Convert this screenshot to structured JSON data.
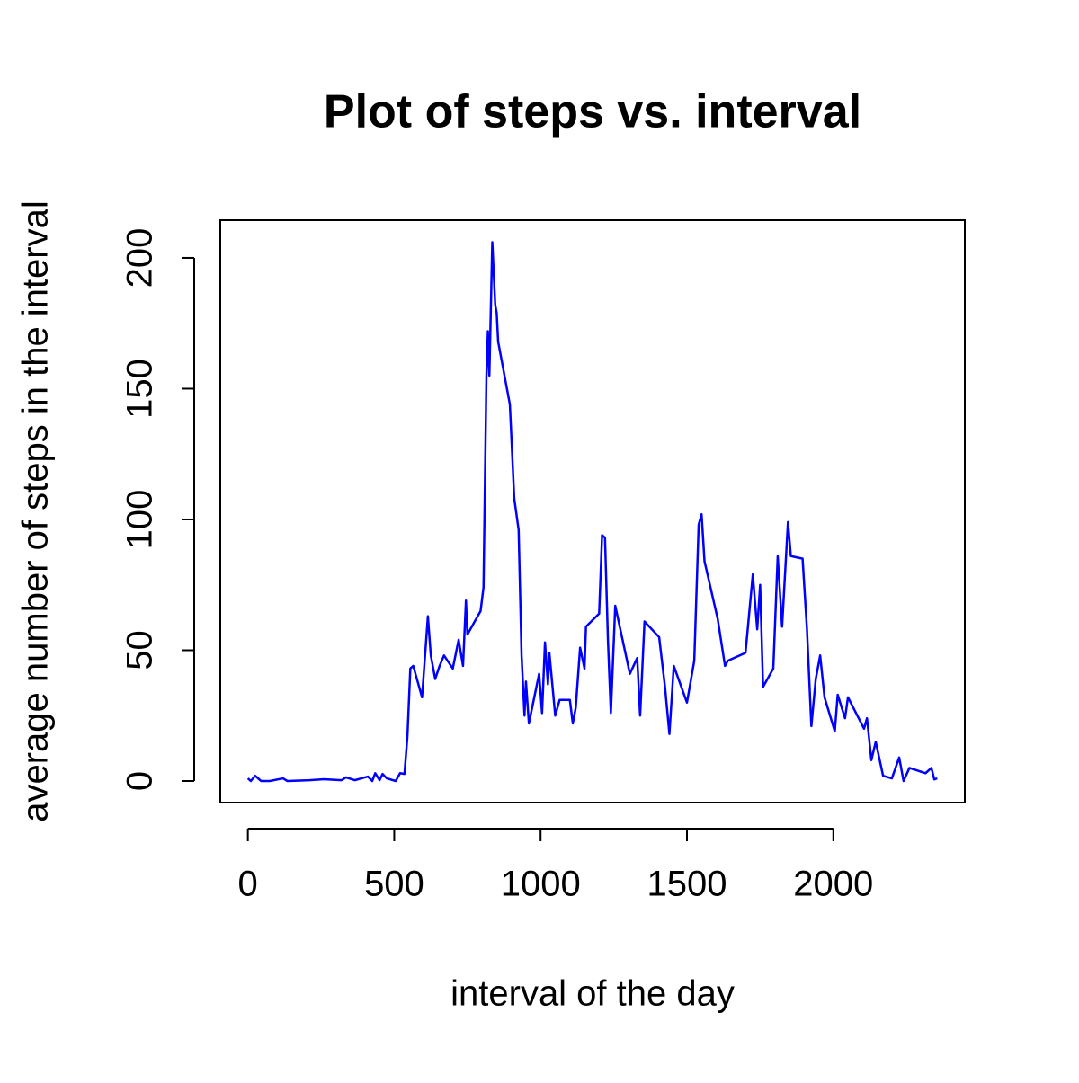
{
  "chart_data": {
    "type": "line",
    "title": "Plot of steps vs. interval",
    "x_label": "interval of the day",
    "y_label": "average number of steps in the interval",
    "xlim": [
      -94.2,
      2449.2
    ],
    "ylim": [
      -8.25,
      214.42
    ],
    "xticks": [
      0,
      500,
      1000,
      1500,
      2000
    ],
    "yticks": [
      0,
      50,
      100,
      150,
      200
    ],
    "series": [
      {
        "color": "#0000ff",
        "x": [
          0,
          10,
          25,
          45,
          75,
          120,
          135,
          210,
          260,
          320,
          335,
          365,
          410,
          425,
          435,
          450,
          460,
          475,
          505,
          520,
          535,
          545,
          555,
          565,
          595,
          615,
          625,
          640,
          655,
          670,
          700,
          720,
          735,
          745,
          750,
          795,
          805,
          815,
          820,
          825,
          835,
          845,
          850,
          855,
          895,
          910,
          925,
          935,
          945,
          950,
          960,
          995,
          1005,
          1015,
          1025,
          1030,
          1050,
          1065,
          1100,
          1110,
          1120,
          1135,
          1150,
          1155,
          1200,
          1210,
          1220,
          1230,
          1240,
          1255,
          1305,
          1330,
          1340,
          1355,
          1405,
          1425,
          1440,
          1455,
          1500,
          1525,
          1540,
          1550,
          1560,
          1605,
          1630,
          1640,
          1700,
          1725,
          1740,
          1750,
          1760,
          1795,
          1810,
          1825,
          1845,
          1855,
          1895,
          1910,
          1925,
          1940,
          1955,
          1970,
          2005,
          2015,
          2040,
          2050,
          2105,
          2115,
          2130,
          2145,
          2170,
          2200,
          2225,
          2240,
          2260,
          2315,
          2335,
          2345,
          2355
        ],
        "values": [
          1,
          0,
          2,
          0,
          0,
          1,
          0,
          0.3,
          0.7,
          0.3,
          1.4,
          0.3,
          1.7,
          0,
          3,
          0.3,
          2.7,
          1,
          0,
          3,
          2.7,
          17,
          43,
          44,
          32,
          63,
          48,
          39,
          44,
          48,
          43,
          54,
          44,
          69,
          56,
          65,
          74,
          155,
          172,
          155,
          206,
          182,
          179,
          168,
          144,
          108,
          96,
          48,
          25,
          38,
          22,
          41,
          26,
          53,
          37,
          49,
          25,
          31,
          31,
          22,
          28,
          51,
          43,
          59,
          64,
          94,
          93,
          54,
          26,
          67,
          41,
          47,
          25,
          61,
          55,
          36,
          18,
          44,
          30,
          46,
          98,
          102,
          84,
          62,
          44,
          46,
          49,
          79,
          58,
          75,
          36,
          43,
          86,
          59,
          99,
          86,
          85,
          58,
          21,
          39,
          48,
          32,
          19,
          33,
          24,
          32,
          20,
          24,
          8,
          15,
          2,
          1,
          9,
          0,
          5,
          3,
          5,
          0.6,
          1
        ]
      }
    ]
  }
}
